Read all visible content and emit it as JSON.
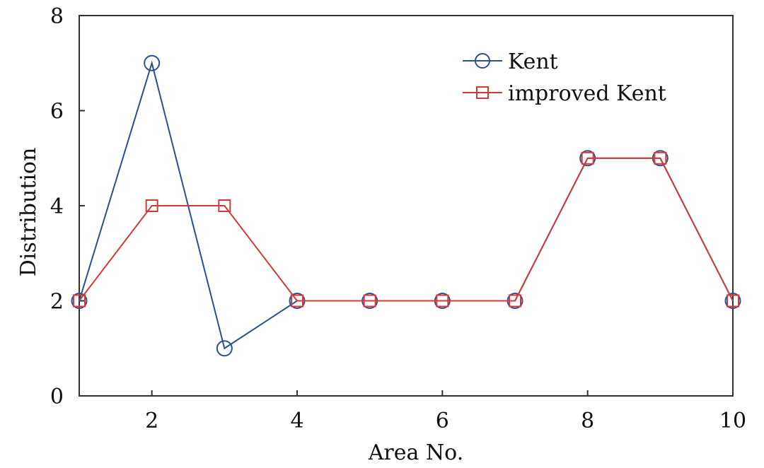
{
  "chart_data": {
    "type": "line",
    "title": "",
    "xlabel": "Area No.",
    "ylabel": "Distribution",
    "x": [
      1,
      2,
      3,
      4,
      5,
      6,
      7,
      8,
      9,
      10
    ],
    "xlim": [
      1,
      10
    ],
    "ylim": [
      0,
      8
    ],
    "xticks": [
      2,
      4,
      6,
      8,
      10
    ],
    "yticks": [
      0,
      2,
      4,
      6,
      8
    ],
    "grid": false,
    "legend_position": "top-right",
    "series": [
      {
        "name": "Kent",
        "marker": "circle",
        "color": "#2b4f91",
        "values": [
          2,
          7,
          1,
          2,
          2,
          2,
          2,
          5,
          5,
          2
        ]
      },
      {
        "name": "improved Kent",
        "marker": "square",
        "color": "#d03a3a",
        "values": [
          2,
          4,
          4,
          2,
          2,
          2,
          2,
          5,
          5,
          2
        ]
      }
    ]
  }
}
